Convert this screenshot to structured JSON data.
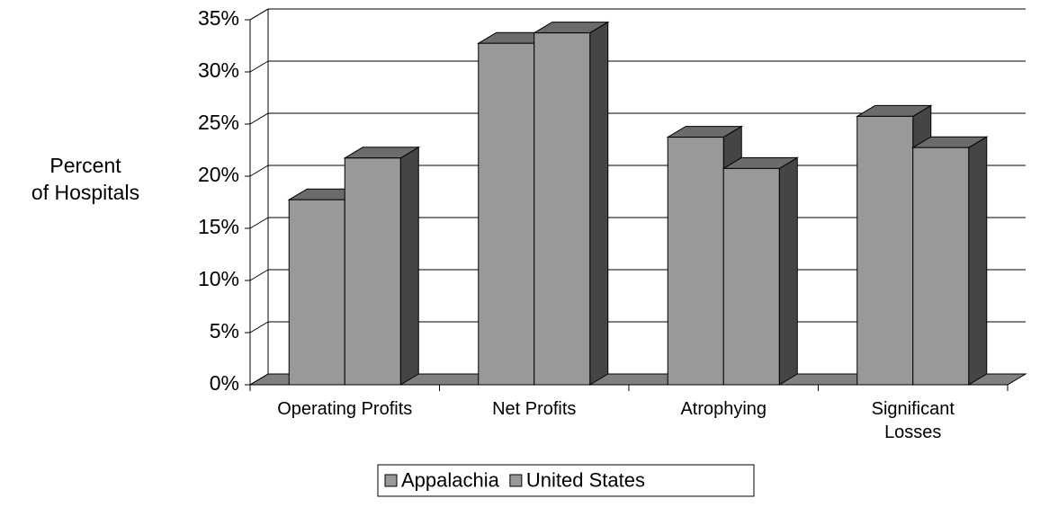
{
  "chart_data": {
    "type": "bar3d",
    "y_label": "Percent\nof Hospitals",
    "categories": [
      "Operating Profits",
      "Net Profits",
      "Atrophying",
      "Significant\nLosses"
    ],
    "series": [
      {
        "name": "Appalachia",
        "color": "#999999",
        "values": [
          18,
          33,
          24,
          26
        ]
      },
      {
        "name": "United States",
        "color": "#999999",
        "values": [
          22,
          34,
          21,
          23
        ]
      }
    ],
    "ylim": [
      0,
      35
    ],
    "yticks": [
      {
        "value": 0,
        "label": "0%"
      },
      {
        "value": 5,
        "label": "5%"
      },
      {
        "value": 10,
        "label": "10%"
      },
      {
        "value": 15,
        "label": "15%"
      },
      {
        "value": 20,
        "label": "20%"
      },
      {
        "value": 25,
        "label": "25%"
      },
      {
        "value": 30,
        "label": "30%"
      },
      {
        "value": 35,
        "label": "35%"
      }
    ],
    "grid": true
  }
}
